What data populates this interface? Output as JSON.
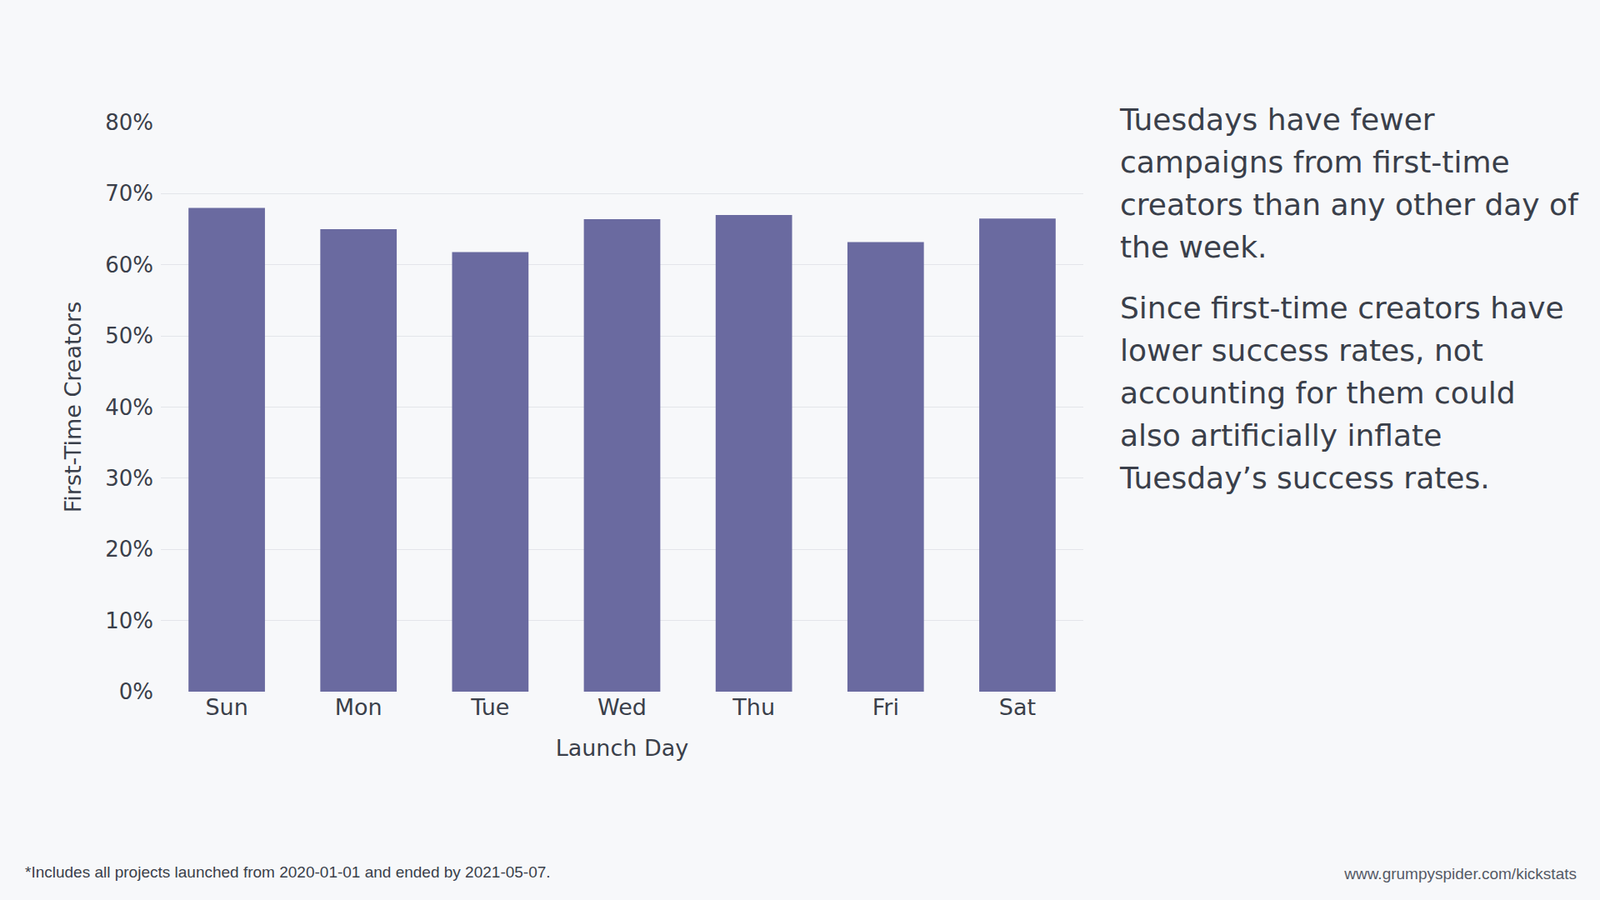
{
  "chart_data": {
    "type": "bar",
    "categories": [
      "Sun",
      "Mon",
      "Tue",
      "Wed",
      "Thu",
      "Fri",
      "Sat"
    ],
    "values": [
      68,
      65,
      61.8,
      66.4,
      67,
      63.2,
      66.5
    ],
    "color": "#6a6aa0",
    "x_label": "Launch Day",
    "y_label": "First-Time Creators",
    "ylim": [
      0,
      80
    ],
    "yticks": [
      {
        "value": 0,
        "label": "0%"
      },
      {
        "value": 10,
        "label": "10%"
      },
      {
        "value": 20,
        "label": "20%"
      },
      {
        "value": 30,
        "label": "30%"
      },
      {
        "value": 40,
        "label": "40%"
      },
      {
        "value": 50,
        "label": "50%"
      },
      {
        "value": 60,
        "label": "60%"
      },
      {
        "value": 70,
        "label": "70%"
      },
      {
        "value": 80,
        "label": "80%"
      }
    ],
    "grid": true,
    "annotations": [
      "Tuesdays have fewer campaigns from first-time creators than any other day of the week.",
      "Since first-time creators have lower success rates, not accounting for them could also artificially inflate Tuesday’s success rates."
    ],
    "footnote": "*Includes all projects launched from 2020-01-01 and ended by 2021-05-07.",
    "source": "www.grumpyspider.com/kickstats"
  }
}
